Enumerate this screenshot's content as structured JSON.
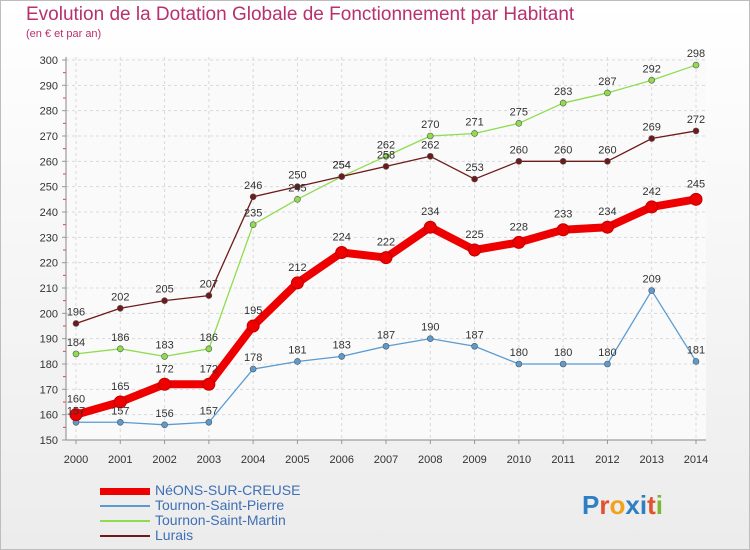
{
  "header": {
    "title": "Evolution de la Dotation Globale de Fonctionnement par Habitant",
    "subtitle": "(en € et par an)"
  },
  "logo": {
    "text": "Proxiti"
  },
  "colors": {
    "title": "#b8306e",
    "neons": "#ee0000",
    "tournon_pierre": "#5b9bd0",
    "tournon_martin": "#8fdc4e",
    "lurais": "#6e1a1a",
    "legend_text": "#3f6fb4"
  },
  "chart_data": {
    "type": "line",
    "title": "Evolution de la Dotation Globale de Fonctionnement par Habitant",
    "ylabel": "(en € et par an)",
    "xlabel": "",
    "x": [
      "2000",
      "2001",
      "2002",
      "2003",
      "2004",
      "2005",
      "2006",
      "2007",
      "2008",
      "2009",
      "2010",
      "2011",
      "2012",
      "2013",
      "2014"
    ],
    "ylim": [
      150,
      300
    ],
    "yticks": [
      150,
      160,
      170,
      180,
      190,
      200,
      210,
      220,
      230,
      240,
      250,
      260,
      270,
      280,
      290,
      300
    ],
    "grid": true,
    "legend_position": "bottom-left",
    "series": [
      {
        "name": "Tournon-Saint-Pierre",
        "color": "#5b9bd0",
        "values": [
          157,
          157,
          156,
          157,
          178,
          181,
          183,
          187,
          190,
          187,
          180,
          180,
          180,
          209,
          181
        ]
      },
      {
        "name": "Tournon-Saint-Martin",
        "color": "#8fdc4e",
        "values": [
          184,
          186,
          183,
          186,
          235,
          245,
          254,
          262,
          270,
          271,
          275,
          283,
          287,
          292,
          298
        ]
      },
      {
        "name": "Lurais",
        "color": "#6e1a1a",
        "values": [
          196,
          202,
          205,
          207,
          246,
          250,
          254,
          258,
          262,
          253,
          260,
          260,
          260,
          269,
          272
        ]
      },
      {
        "name": "NéONS-SUR-CREUSE",
        "color": "#ee0000",
        "values": [
          160,
          165,
          172,
          172,
          195,
          212,
          224,
          222,
          234,
          225,
          228,
          233,
          234,
          242,
          245
        ]
      }
    ],
    "legend_order": [
      "NéONS-SUR-CREUSE",
      "Tournon-Saint-Pierre",
      "Tournon-Saint-Martin",
      "Lurais"
    ]
  }
}
